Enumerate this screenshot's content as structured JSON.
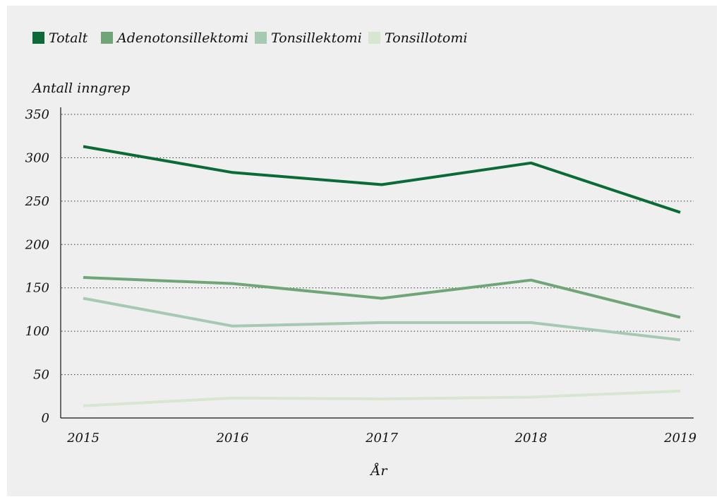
{
  "chart_data": {
    "type": "line",
    "title": "",
    "xlabel": "År",
    "ylabel": "Antall inngrep",
    "x": [
      "2015",
      "2016",
      "2017",
      "2018",
      "2019"
    ],
    "ylim": [
      0,
      350
    ],
    "yticks": [
      "0",
      "50",
      "100",
      "150",
      "200",
      "250",
      "300",
      "350"
    ],
    "grid": true,
    "legend_position": "top-left",
    "series": [
      {
        "name": "Totalt",
        "color": "#0b6b37",
        "values": [
          313,
          283,
          269,
          294,
          237
        ]
      },
      {
        "name": "Adenotonsillektomi",
        "color": "#6fa577",
        "values": [
          162,
          155,
          138,
          159,
          116
        ]
      },
      {
        "name": "Tonsillektomi",
        "color": "#a6c9b2",
        "values": [
          138,
          106,
          110,
          110,
          90
        ]
      },
      {
        "name": "Tonsillotomi",
        "color": "#d7e6d1",
        "values": [
          14,
          23,
          22,
          24,
          31
        ]
      }
    ]
  }
}
